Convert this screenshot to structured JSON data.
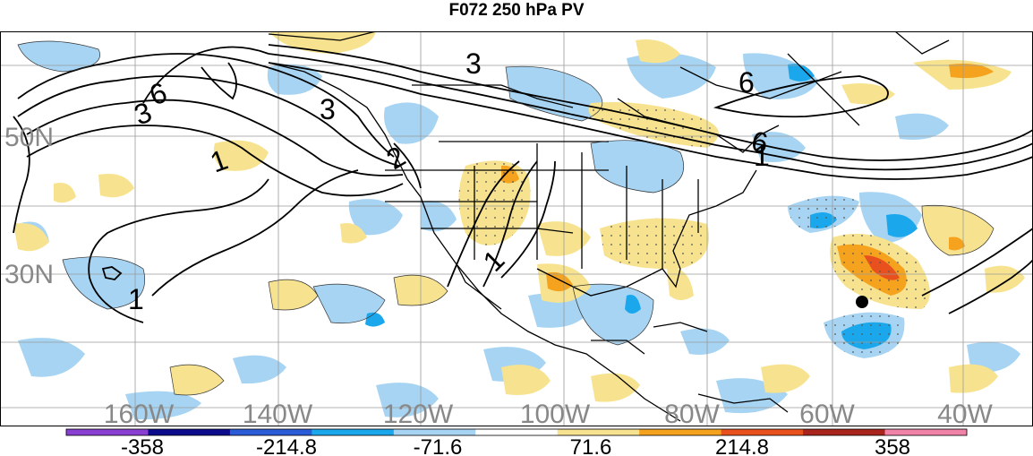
{
  "title": "F072 250 hPa PV",
  "map": {
    "longitude_labels": [
      "160W",
      "140W",
      "120W",
      "100W",
      "80W",
      "60W",
      "40W"
    ],
    "latitude_labels": [
      "50N",
      "30N"
    ],
    "contour_labels": [
      "3",
      "6",
      "3",
      "1",
      "2",
      "3",
      "6",
      "6",
      "1",
      "1",
      "1"
    ],
    "colors": {
      "negative_light": "#a6d4f2",
      "negative_mid": "#55bdf0",
      "positive_light": "#f7e38f",
      "positive_mid": "#f5a31e",
      "positive_strong": "#e8501e",
      "contour": "#000000",
      "grid": "#9a9a9a"
    }
  },
  "colorbar": {
    "tick_labels": [
      "-358",
      "-214.8",
      "-71.6",
      "71.6",
      "214.8",
      "358"
    ],
    "colors": [
      "#8a3fd3",
      "#0b0b8c",
      "#2b5bd6",
      "#1aa7ec",
      "#a6d4f2",
      "#ffffff",
      "#f7e38f",
      "#f5a31e",
      "#e8501e",
      "#a8241d",
      "#f084a8"
    ]
  }
}
